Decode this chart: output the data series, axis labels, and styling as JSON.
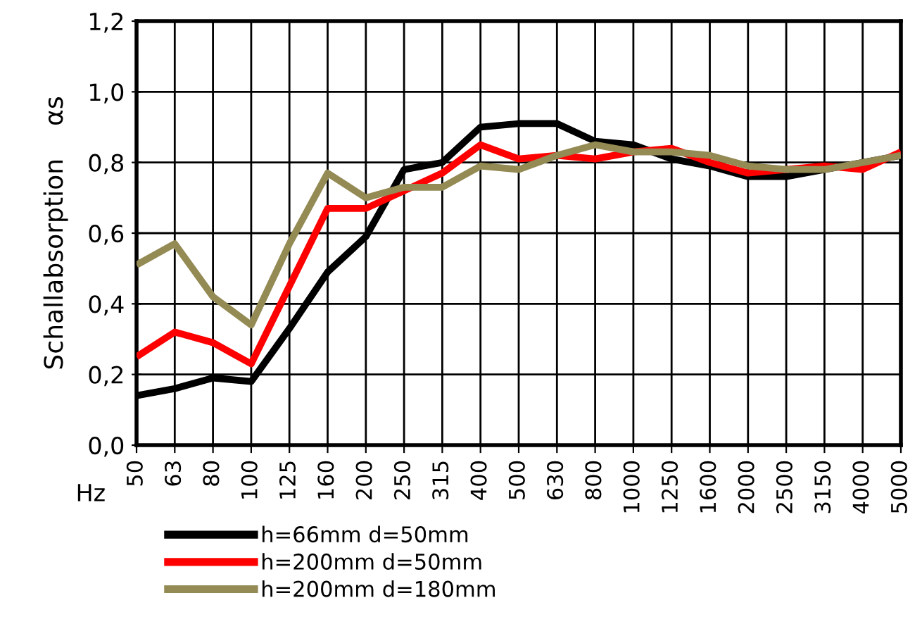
{
  "chart_data": {
    "type": "line",
    "xlabel": "Hz",
    "ylabel": "Schallabsorption    αs",
    "categories": [
      "50",
      "63",
      "80",
      "100",
      "125",
      "160",
      "200",
      "250",
      "315",
      "400",
      "500",
      "630",
      "800",
      "1000",
      "1250",
      "1600",
      "2000",
      "2500",
      "3150",
      "4000",
      "5000"
    ],
    "series": [
      {
        "name": "h=66mm d=50mm",
        "color": "#000000",
        "values": [
          0.14,
          0.16,
          0.19,
          0.18,
          0.33,
          0.49,
          0.59,
          0.78,
          0.8,
          0.9,
          0.91,
          0.91,
          0.86,
          0.85,
          0.81,
          0.79,
          0.76,
          0.76,
          0.78,
          0.8,
          0.82
        ]
      },
      {
        "name": "h=200mm d=50mm",
        "color": "#ff0000",
        "values": [
          0.25,
          0.32,
          0.29,
          0.23,
          0.45,
          0.67,
          0.67,
          0.72,
          0.77,
          0.85,
          0.81,
          0.82,
          0.81,
          0.83,
          0.84,
          0.8,
          0.77,
          0.78,
          0.79,
          0.78,
          0.83
        ]
      },
      {
        "name": "h=200mm d=180mm",
        "color": "#948a54",
        "values": [
          0.51,
          0.57,
          0.42,
          0.34,
          0.57,
          0.77,
          0.7,
          0.73,
          0.73,
          0.79,
          0.78,
          0.82,
          0.85,
          0.83,
          0.83,
          0.82,
          0.79,
          0.78,
          0.78,
          0.8,
          0.82
        ]
      }
    ],
    "ylim": [
      0,
      1.2
    ],
    "yticks": [
      {
        "value": 0,
        "label": "0,0"
      },
      {
        "value": 0.2,
        "label": "0,2"
      },
      {
        "value": 0.4,
        "label": "0,4"
      },
      {
        "value": 0.6,
        "label": "0,6"
      },
      {
        "value": 0.8,
        "label": "0,8"
      },
      {
        "value": 1.0,
        "label": "1,0"
      },
      {
        "value": 1.2,
        "label": "1,2"
      }
    ],
    "grid": true,
    "legend": "bottom",
    "marker": "none",
    "line_style": "solid"
  }
}
